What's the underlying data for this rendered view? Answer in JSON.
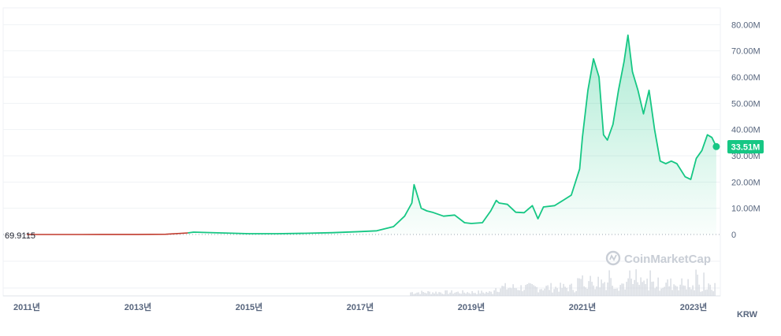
{
  "chart_data": {
    "type": "area",
    "currency": "KRW",
    "start_value_label": "69.9115",
    "current_value_label": "33.51M",
    "watermark": "CoinMarketCap",
    "y_ticks": [
      {
        "value": 0,
        "label": "0"
      },
      {
        "value": 10000000,
        "label": "10.00M"
      },
      {
        "value": 20000000,
        "label": "20.00M"
      },
      {
        "value": 30000000,
        "label": "30.00M"
      },
      {
        "value": 40000000,
        "label": "40.00M"
      },
      {
        "value": 50000000,
        "label": "50.00M"
      },
      {
        "value": 60000000,
        "label": "60.00M"
      },
      {
        "value": 70000000,
        "label": "70.00M"
      },
      {
        "value": 80000000,
        "label": "80.00M"
      }
    ],
    "x_ticks": [
      {
        "year": 2011,
        "label": "2011년"
      },
      {
        "year": 2013,
        "label": "2013년"
      },
      {
        "year": 2015,
        "label": "2015년"
      },
      {
        "year": 2017,
        "label": "2017년"
      },
      {
        "year": 2019,
        "label": "2019년"
      },
      {
        "year": 2021,
        "label": "2021년"
      },
      {
        "year": 2023,
        "label": "2023년"
      }
    ],
    "xlim": [
      2010.5,
      2023.5
    ],
    "ylim": [
      -10000000,
      80000000
    ],
    "colors": {
      "line": "#16c784",
      "prehistory": "#c0392b",
      "badge": "#16c784",
      "volume": "#cfd4dc",
      "grid": "#eff2f5"
    },
    "series": [
      {
        "points": [
          [
            2011.0,
            70
          ],
          [
            2012.0,
            8000
          ],
          [
            2013.0,
            15000
          ],
          [
            2013.5,
            100000
          ],
          [
            2013.9,
            600000
          ],
          [
            2014.0,
            900000
          ],
          [
            2014.5,
            600000
          ],
          [
            2015.0,
            300000
          ],
          [
            2015.5,
            290000
          ],
          [
            2016.0,
            450000
          ],
          [
            2016.5,
            700000
          ],
          [
            2017.0,
            1100000
          ],
          [
            2017.3,
            1400000
          ],
          [
            2017.6,
            3000000
          ],
          [
            2017.8,
            7000000
          ],
          [
            2017.93,
            12000000
          ],
          [
            2017.97,
            19000000
          ],
          [
            2018.0,
            17000000
          ],
          [
            2018.1,
            10000000
          ],
          [
            2018.2,
            9000000
          ],
          [
            2018.3,
            8500000
          ],
          [
            2018.5,
            7000000
          ],
          [
            2018.7,
            7400000
          ],
          [
            2018.88,
            4500000
          ],
          [
            2019.0,
            4200000
          ],
          [
            2019.2,
            4500000
          ],
          [
            2019.35,
            9000000
          ],
          [
            2019.45,
            13000000
          ],
          [
            2019.5,
            12000000
          ],
          [
            2019.65,
            11500000
          ],
          [
            2019.8,
            8500000
          ],
          [
            2019.95,
            8300000
          ],
          [
            2020.1,
            11000000
          ],
          [
            2020.2,
            6000000
          ],
          [
            2020.3,
            10500000
          ],
          [
            2020.5,
            11000000
          ],
          [
            2020.65,
            13000000
          ],
          [
            2020.8,
            15000000
          ],
          [
            2020.95,
            25000000
          ],
          [
            2021.0,
            37000000
          ],
          [
            2021.1,
            55000000
          ],
          [
            2021.2,
            67000000
          ],
          [
            2021.3,
            60000000
          ],
          [
            2021.38,
            38000000
          ],
          [
            2021.45,
            36000000
          ],
          [
            2021.55,
            42000000
          ],
          [
            2021.65,
            55000000
          ],
          [
            2021.75,
            66000000
          ],
          [
            2021.82,
            76000000
          ],
          [
            2021.9,
            62000000
          ],
          [
            2022.0,
            55000000
          ],
          [
            2022.1,
            46000000
          ],
          [
            2022.2,
            55000000
          ],
          [
            2022.3,
            40000000
          ],
          [
            2022.4,
            28000000
          ],
          [
            2022.5,
            27000000
          ],
          [
            2022.6,
            28000000
          ],
          [
            2022.7,
            27000000
          ],
          [
            2022.85,
            22000000
          ],
          [
            2022.95,
            21000000
          ],
          [
            2023.05,
            29000000
          ],
          [
            2023.15,
            32000000
          ],
          [
            2023.25,
            38000000
          ],
          [
            2023.33,
            37000000
          ],
          [
            2023.41,
            33510000
          ]
        ]
      }
    ]
  }
}
